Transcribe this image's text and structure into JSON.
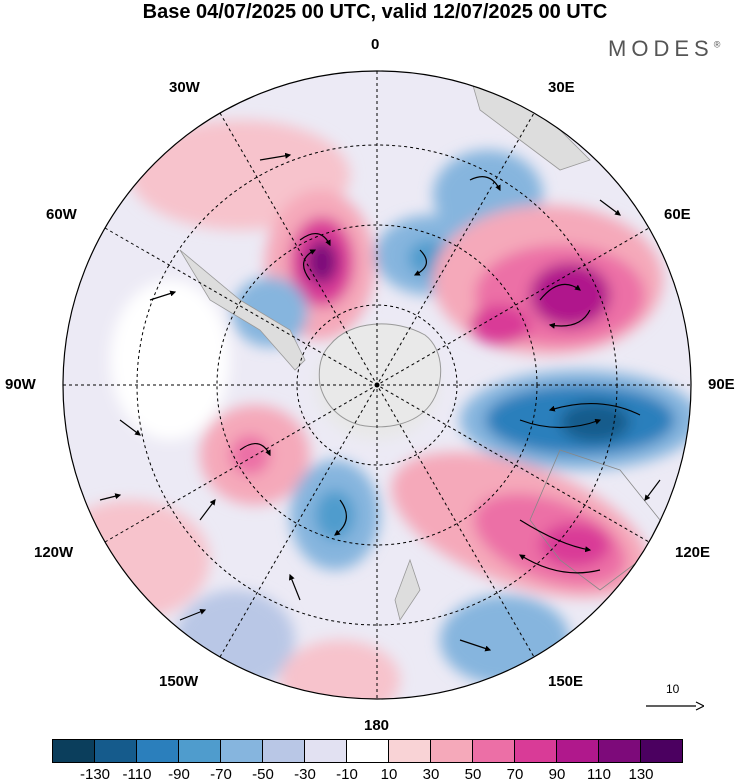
{
  "title": "Base 04/07/2025 00 UTC, valid 12/07/2025 00 UTC",
  "brand": "MODES",
  "brand_mark": "®",
  "longitude_labels": {
    "lon_0": "0",
    "lon_30E": "30E",
    "lon_60E": "60E",
    "lon_90E": "90E",
    "lon_120E": "120E",
    "lon_150E": "150E",
    "lon_180": "180",
    "lon_150W": "150W",
    "lon_120W": "120W",
    "lon_90W": "90W",
    "lon_60W": "60W",
    "lon_30W": "30W"
  },
  "reference_vector_label": "10",
  "colorbar": {
    "labels": [
      "-130",
      "-110",
      "-90",
      "-70",
      "-50",
      "-30",
      "-10",
      "10",
      "30",
      "50",
      "70",
      "90",
      "110",
      "130"
    ],
    "colors": [
      "#0b3e5c",
      "#155b8c",
      "#2b7fbc",
      "#4f9ccd",
      "#86b5de",
      "#b9c7e6",
      "#e2e1f2",
      "#ffffff",
      "#f9d3d6",
      "#f5a9ba",
      "#ec6fa6",
      "#d93b97",
      "#b0188c",
      "#7d0a7a",
      "#4b0060"
    ]
  },
  "map": {
    "projection": "south polar stereographic",
    "icon": "polar-map"
  }
}
